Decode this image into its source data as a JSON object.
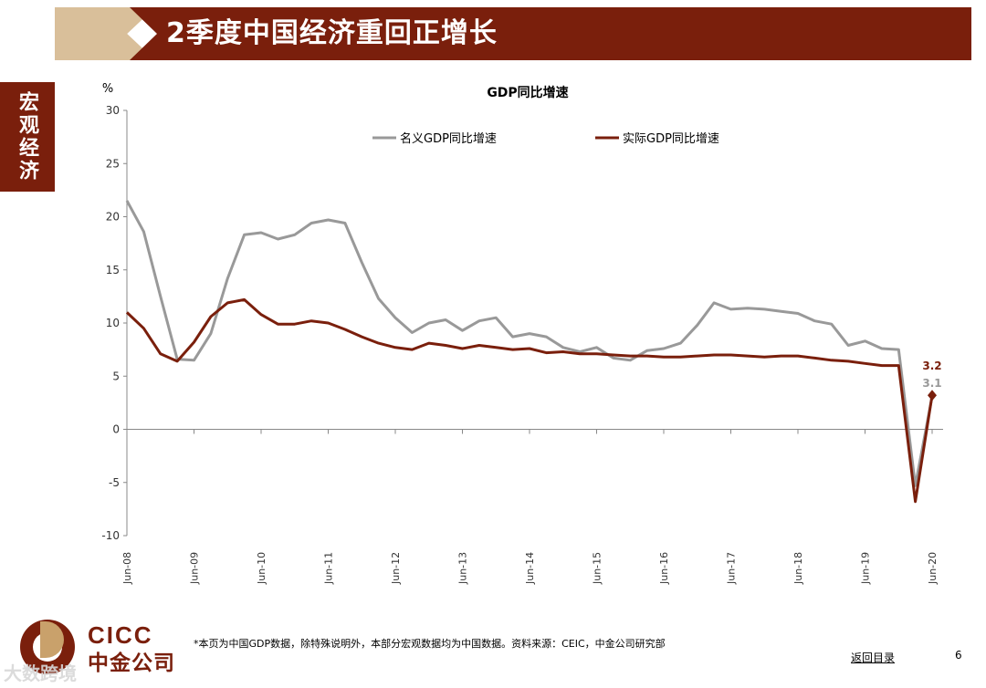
{
  "header": {
    "title": "2季度中国经济重回正增长"
  },
  "sidebar": {
    "label": "宏观经济"
  },
  "colors": {
    "brand": "#7a1f0c",
    "accent": "#d9bf9a",
    "nominal": "#999999",
    "real": "#7a1f0c"
  },
  "chart_data": {
    "type": "line",
    "title": "GDP同比增速",
    "unit_label": "%",
    "ylim": [
      -10,
      30
    ],
    "yticks": [
      30,
      25,
      20,
      15,
      10,
      5,
      0,
      -5,
      -10
    ],
    "xtick_labels": [
      "Jun-08",
      "Jun-09",
      "Jun-10",
      "Jun-11",
      "Jun-12",
      "Jun-13",
      "Jun-14",
      "Jun-15",
      "Jun-16",
      "Jun-17",
      "Jun-18",
      "Jun-19",
      "Jun-20"
    ],
    "legend_position": "top",
    "grid": false,
    "series": [
      {
        "name": "名义GDP同比增速",
        "color": "#999999",
        "values": [
          21.5,
          18.6,
          12.5,
          6.6,
          6.5,
          9.0,
          14.2,
          18.3,
          18.5,
          17.9,
          18.3,
          19.4,
          19.7,
          19.4,
          15.7,
          12.3,
          10.5,
          9.1,
          10.0,
          10.3,
          9.3,
          10.2,
          10.5,
          8.7,
          9.0,
          8.7,
          7.7,
          7.3,
          7.7,
          6.7,
          6.5,
          7.4,
          7.6,
          8.1,
          9.8,
          11.9,
          11.3,
          11.4,
          11.3,
          11.1,
          10.9,
          10.2,
          9.9,
          7.9,
          8.3,
          7.6,
          7.5,
          -5.3,
          3.1
        ]
      },
      {
        "name": "实际GDP同比增速",
        "color": "#7a1f0c",
        "values": [
          11.0,
          9.5,
          7.1,
          6.4,
          8.2,
          10.6,
          11.9,
          12.2,
          10.8,
          9.9,
          9.9,
          10.2,
          10.0,
          9.4,
          8.7,
          8.1,
          7.7,
          7.5,
          8.1,
          7.9,
          7.6,
          7.9,
          7.7,
          7.5,
          7.6,
          7.2,
          7.3,
          7.1,
          7.1,
          7.0,
          6.9,
          6.9,
          6.8,
          6.8,
          6.9,
          7.0,
          7.0,
          6.9,
          6.8,
          6.9,
          6.9,
          6.7,
          6.5,
          6.4,
          6.2,
          6.0,
          6.0,
          -6.8,
          3.2
        ]
      }
    ],
    "end_labels": [
      "3.2",
      "3.1"
    ]
  },
  "footer": {
    "note": "*本页为中国GDP数据，除特殊说明外，本部分宏观数据均为中国数据。资料来源：CEIC，中金公司研究部",
    "back_link": "返回目录",
    "page_number": "6",
    "logo_en": "CICC",
    "logo_cn": "中金公司",
    "watermark": "大数跨境"
  }
}
